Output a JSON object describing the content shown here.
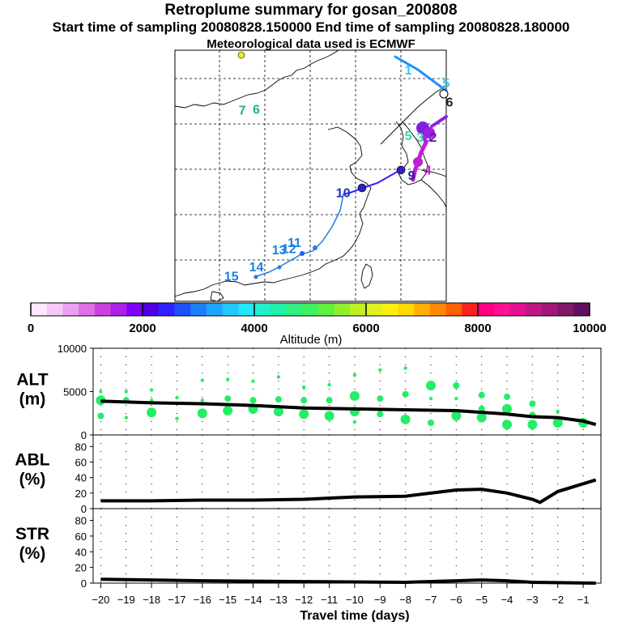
{
  "header": {
    "title": "Retroplume summary for gosan_200808",
    "sampling": "Start time of sampling 20080828.150000     End time of sampling 20080828.180000",
    "met": "Meteorological data used is ECMWF"
  },
  "map": {
    "day_labels": [
      {
        "label": "1",
        "color": "#39c6f0",
        "lon": 131.5,
        "lat": 45.0
      },
      {
        "label": "5",
        "color": "#39c6f0",
        "lon": 135.0,
        "lat": 43.6
      },
      {
        "label": "6",
        "color": "#222222",
        "lon": 135.3,
        "lat": 41.5
      },
      {
        "label": "7",
        "color": "#2fae7a",
        "lon": 116.2,
        "lat": 40.6
      },
      {
        "label": "6",
        "color": "#2fae7a",
        "lon": 117.5,
        "lat": 40.7
      },
      {
        "label": "5",
        "color": "#33d8b0",
        "lon": 131.5,
        "lat": 37.8
      },
      {
        "label": "3",
        "color": "#33d8b0",
        "lon": 132.6,
        "lat": 37.6
      },
      {
        "label": "8",
        "color": "#8a2be2",
        "lon": 133.3,
        "lat": 37.6
      },
      {
        "label": "2",
        "color": "#6a0dad",
        "lon": 133.8,
        "lat": 37.6
      },
      {
        "label": "9",
        "color": "#2020a0",
        "lon": 131.8,
        "lat": 33.4
      },
      {
        "label": "4",
        "color": "#c020d0",
        "lon": 133.3,
        "lat": 34.0
      },
      {
        "label": "10",
        "color": "#2030c0",
        "lon": 125.5,
        "lat": 31.5
      },
      {
        "label": "11",
        "color": "#1e80e0",
        "lon": 121.0,
        "lat": 26.0
      },
      {
        "label": "12",
        "color": "#1e80e0",
        "lon": 120.5,
        "lat": 25.3
      },
      {
        "label": "13",
        "color": "#1e80e0",
        "lon": 119.6,
        "lat": 25.2
      },
      {
        "label": "14",
        "color": "#1e80e0",
        "lon": 117.5,
        "lat": 23.3
      },
      {
        "label": "15",
        "color": "#1e80e0",
        "lon": 115.2,
        "lat": 22.3
      }
    ]
  },
  "colorbar": {
    "ticks": [
      "0",
      "2000",
      "4000",
      "6000",
      "8000",
      "10000"
    ],
    "label": "Altitude  (m)",
    "colors": [
      "#fde8ff",
      "#f6c8f8",
      "#eea0f0",
      "#e070e8",
      "#cc40e0",
      "#b020e8",
      "#8000ff",
      "#5000e0",
      "#3020ff",
      "#2050ff",
      "#1e7cff",
      "#20a4ff",
      "#20c8ff",
      "#20e8f8",
      "#20f0d0",
      "#20f0a8",
      "#30f080",
      "#40f060",
      "#60f040",
      "#90f030",
      "#c0f020",
      "#e0f020",
      "#f8f010",
      "#ffd800",
      "#ffb000",
      "#ff8800",
      "#ff6000",
      "#ff2020",
      "#ff0080",
      "#ff1090",
      "#e81090",
      "#c01880",
      "#a01878",
      "#801868",
      "#601060"
    ],
    "range": [
      0,
      10000
    ]
  },
  "chart_data": [
    {
      "type": "scatter",
      "panel": "ALT",
      "ylabel": "ALT\n(m)",
      "ylim": [
        0,
        10000
      ],
      "yticks": [
        "0",
        "5000",
        "10000"
      ],
      "xlim": [
        -20,
        -0.4
      ],
      "series": [
        {
          "name": "mean altitude",
          "x": [
            -20,
            -18,
            -16,
            -14,
            -12,
            -10,
            -8,
            -6,
            -4,
            -3,
            -2,
            -1,
            -0.5
          ],
          "y": [
            3900,
            3700,
            3600,
            3400,
            3100,
            3000,
            2900,
            2800,
            2400,
            2100,
            2000,
            1600,
            1200
          ]
        },
        {
          "name": "plume clusters",
          "x": [
            -20,
            -20,
            -20,
            -19,
            -19,
            -19,
            -18,
            -18,
            -18,
            -17,
            -17,
            -16,
            -16,
            -16,
            -15,
            -15,
            -15,
            -14,
            -14,
            -14,
            -13,
            -13,
            -13,
            -12,
            -12,
            -12,
            -11,
            -11,
            -11,
            -10,
            -10,
            -10,
            -10,
            -9,
            -9,
            -9,
            -8,
            -8,
            -8,
            -7,
            -7,
            -7,
            -6,
            -6,
            -6,
            -5,
            -5,
            -5,
            -4,
            -4,
            -4,
            -3,
            -3,
            -3,
            -2,
            -2,
            -1
          ],
          "y": [
            5000,
            4000,
            2200,
            5000,
            4000,
            2000,
            5200,
            4000,
            2600,
            4300,
            1900,
            6300,
            4000,
            2500,
            6400,
            4200,
            2800,
            6200,
            4000,
            3000,
            6700,
            4100,
            2700,
            5500,
            4000,
            2400,
            5800,
            4000,
            2200,
            6900,
            4500,
            2700,
            1500,
            7500,
            4200,
            2400,
            7700,
            4700,
            1800,
            5700,
            4200,
            1400,
            5700,
            4200,
            2200,
            4600,
            3000,
            2000,
            4400,
            3000,
            1200,
            3600,
            2300,
            1200,
            2700,
            1400,
            1400
          ],
          "size": [
            1,
            3,
            2,
            1,
            2,
            1,
            1,
            1,
            3,
            1,
            1,
            1,
            1,
            3,
            1,
            2,
            3,
            1,
            2,
            3,
            1,
            2,
            3,
            1,
            2,
            3,
            1,
            2,
            3,
            1,
            3,
            3,
            1,
            1,
            2,
            2,
            1,
            2,
            3,
            3,
            1,
            2,
            2,
            1,
            3,
            2,
            2,
            3,
            2,
            3,
            3,
            2,
            2,
            3,
            1,
            3,
            3
          ]
        }
      ]
    },
    {
      "type": "line",
      "panel": "ABL",
      "ylabel": "ABL\n(%)",
      "ylim": [
        0,
        90
      ],
      "yticks": [
        "0",
        "20",
        "40",
        "60",
        "80"
      ],
      "x": [
        -20,
        -18,
        -16,
        -14,
        -12,
        -10,
        -8,
        -6,
        -5,
        -4,
        -3,
        -2.7,
        -2,
        -1,
        -0.5
      ],
      "values": [
        10,
        10,
        11,
        11,
        12,
        15,
        16,
        24,
        25,
        20,
        12,
        8,
        22,
        32,
        37
      ]
    },
    {
      "type": "line",
      "panel": "STR",
      "ylabel": "STR\n(%)",
      "ylim": [
        0,
        90
      ],
      "yticks": [
        "0",
        "20",
        "40",
        "60",
        "80"
      ],
      "x": [
        -20,
        -18,
        -16,
        -12,
        -8,
        -6,
        -5,
        -4,
        -3,
        -0.5
      ],
      "values": [
        5,
        4,
        3,
        2,
        1,
        3,
        4,
        3,
        1,
        0
      ]
    }
  ],
  "xaxis": {
    "ticks": [
      "−20",
      "−19",
      "−18",
      "−17",
      "−16",
      "−15",
      "−14",
      "−13",
      "−12",
      "−11",
      "−10",
      "−9",
      "−8",
      "−7",
      "−6",
      "−5",
      "−4",
      "−3",
      "−2",
      "−1"
    ],
    "label": "Travel time (days)"
  }
}
